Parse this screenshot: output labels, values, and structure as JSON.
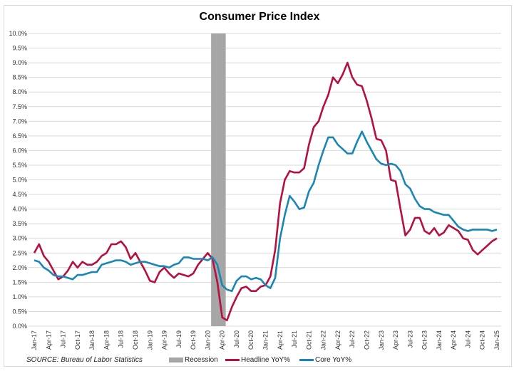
{
  "chart_data": {
    "type": "line",
    "title": "Consumer Price Index",
    "xlabel": "",
    "ylabel": "",
    "ylim": [
      0,
      10
    ],
    "yticks": [
      "0.0%",
      "0.5%",
      "1.0%",
      "1.5%",
      "2.0%",
      "2.5%",
      "3.0%",
      "3.5%",
      "4.0%",
      "4.5%",
      "5.0%",
      "5.5%",
      "6.0%",
      "6.5%",
      "7.0%",
      "7.5%",
      "8.0%",
      "8.5%",
      "9.0%",
      "9.5%",
      "10.0%"
    ],
    "x_start": "Jan-17",
    "x_end": "Jan-25",
    "xticks": [
      "Jan-17",
      "Apr-17",
      "Jul-17",
      "Oct-17",
      "Jan-18",
      "Apr-18",
      "Jul-18",
      "Oct-18",
      "Jan-19",
      "Apr-19",
      "Jul-19",
      "Oct-19",
      "Jan-20",
      "Apr-20",
      "Jul-20",
      "Oct-20",
      "Jan-21",
      "Apr-21",
      "Jul-21",
      "Oct-21",
      "Jan-22",
      "Apr-22",
      "Jul-22",
      "Oct-22",
      "Jan-23",
      "Apr-23",
      "Jul-23",
      "Oct-23",
      "Jan-24",
      "Apr-24",
      "Jul-24",
      "Oct-24",
      "Jan-25"
    ],
    "grid": true,
    "legend_position": "bottom",
    "recession": {
      "name": "Recession",
      "start": "Feb-20",
      "end": "Apr-20",
      "color": "#a6a6a6"
    },
    "series": [
      {
        "name": "Headline YoY%",
        "color": "#b5103f",
        "values": [
          2.5,
          2.8,
          2.4,
          2.2,
          1.9,
          1.6,
          1.7,
          1.9,
          2.2,
          2.0,
          2.2,
          2.1,
          2.1,
          2.2,
          2.4,
          2.5,
          2.8,
          2.8,
          2.9,
          2.7,
          2.3,
          2.5,
          2.2,
          1.9,
          1.55,
          1.5,
          1.85,
          2.0,
          1.8,
          1.65,
          1.8,
          1.75,
          1.7,
          1.8,
          2.1,
          2.3,
          2.5,
          2.3,
          1.5,
          0.3,
          0.2,
          0.65,
          1.0,
          1.3,
          1.35,
          1.2,
          1.2,
          1.35,
          1.4,
          1.7,
          2.6,
          4.2,
          5.0,
          5.3,
          5.25,
          5.25,
          5.4,
          6.2,
          6.8,
          7.0,
          7.5,
          7.9,
          8.5,
          8.3,
          8.6,
          9.0,
          8.5,
          8.25,
          8.2,
          7.7,
          7.1,
          6.4,
          6.35,
          6.0,
          5.0,
          4.95,
          4.0,
          3.1,
          3.3,
          3.7,
          3.7,
          3.25,
          3.15,
          3.35,
          3.1,
          3.2,
          3.45,
          3.35,
          3.25,
          3.0,
          2.95,
          2.6,
          2.45,
          2.6,
          2.75,
          2.9,
          3.0
        ]
      },
      {
        "name": "Core YoY%",
        "color": "#1a86b5",
        "values": [
          2.25,
          2.2,
          2.0,
          1.9,
          1.75,
          1.7,
          1.7,
          1.65,
          1.6,
          1.75,
          1.75,
          1.8,
          1.85,
          1.85,
          2.1,
          2.15,
          2.2,
          2.25,
          2.25,
          2.2,
          2.1,
          2.15,
          2.2,
          2.2,
          2.15,
          2.1,
          2.05,
          2.05,
          2.0,
          2.1,
          2.15,
          2.35,
          2.35,
          2.3,
          2.3,
          2.3,
          2.25,
          2.35,
          2.1,
          1.4,
          1.25,
          1.2,
          1.55,
          1.7,
          1.7,
          1.6,
          1.65,
          1.6,
          1.4,
          1.3,
          1.65,
          3.0,
          3.8,
          4.45,
          4.25,
          4.0,
          4.05,
          4.6,
          4.9,
          5.5,
          6.0,
          6.45,
          6.45,
          6.2,
          6.05,
          5.9,
          5.9,
          6.3,
          6.65,
          6.3,
          6.0,
          5.7,
          5.55,
          5.5,
          5.55,
          5.5,
          5.3,
          4.85,
          4.7,
          4.35,
          4.1,
          4.0,
          4.0,
          3.9,
          3.85,
          3.8,
          3.8,
          3.6,
          3.4,
          3.3,
          3.25,
          3.3,
          3.3,
          3.3,
          3.3,
          3.25,
          3.3
        ]
      }
    ]
  },
  "source": "SOURCE: Bureau of Labor Statistics"
}
